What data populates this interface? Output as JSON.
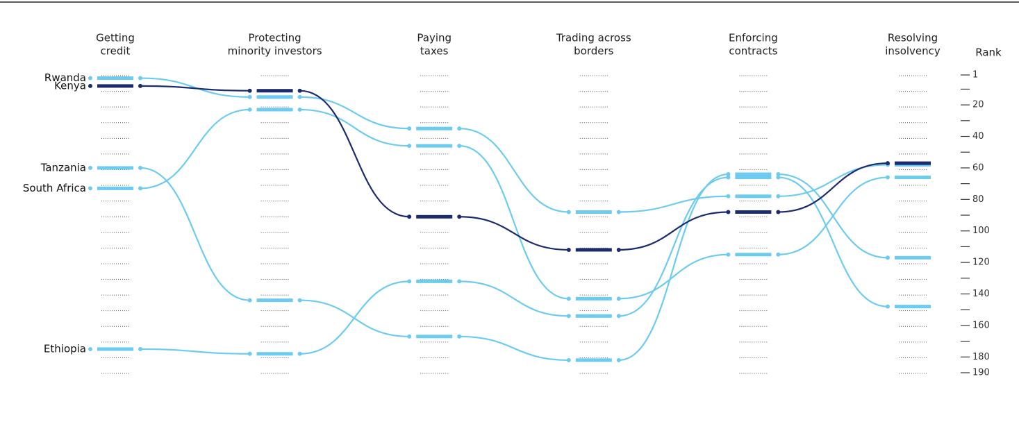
{
  "chart_data": {
    "type": "bump",
    "categories": [
      [
        "Getting",
        "credit"
      ],
      [
        "Protecting",
        "minority investors"
      ],
      [
        "Paying",
        "taxes"
      ],
      [
        "Trading across",
        "borders"
      ],
      [
        "Enforcing",
        "contracts"
      ],
      [
        "Resolving",
        "insolvency"
      ]
    ],
    "y_label": "Rank",
    "ylim": [
      1,
      190
    ],
    "yticks": [
      1,
      20,
      40,
      60,
      80,
      100,
      120,
      140,
      160,
      180,
      190
    ],
    "yticks_minor": [
      10,
      30,
      50,
      70,
      90,
      110,
      130,
      150,
      170
    ],
    "series": [
      {
        "name": "Rwanda",
        "color": "#6ccbef",
        "values": [
          3,
          15,
          35,
          88,
          78,
          58
        ]
      },
      {
        "name": "Tanzania",
        "color": "#6ccbef",
        "values": [
          60,
          144,
          167,
          182,
          64,
          117
        ]
      },
      {
        "name": "South Africa",
        "color": "#6ccbef",
        "values": [
          73,
          23,
          46,
          143,
          115,
          66
        ]
      },
      {
        "name": "Ethiopia",
        "color": "#6ccbef",
        "values": [
          175,
          178,
          132,
          154,
          66,
          148
        ]
      },
      {
        "name": "Kenya",
        "color": "#1c2b6e",
        "values": [
          8,
          11,
          91,
          112,
          88,
          57
        ]
      }
    ]
  }
}
